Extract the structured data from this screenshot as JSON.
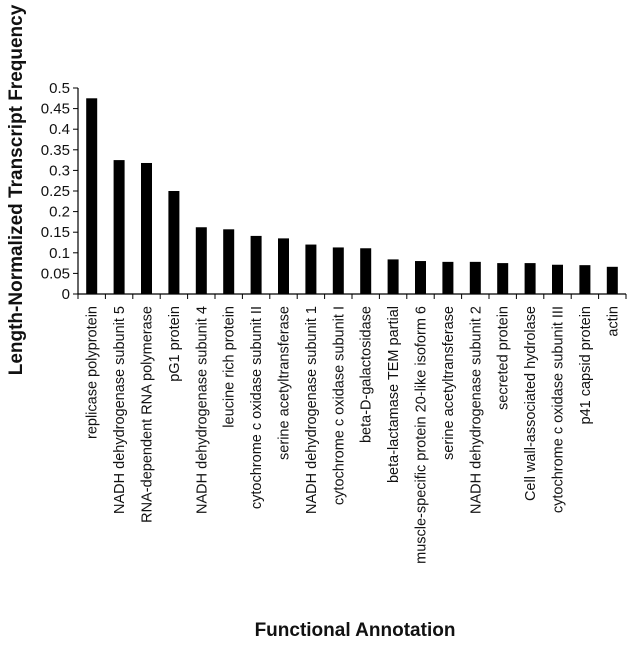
{
  "chart_data": {
    "type": "bar",
    "title": "",
    "xlabel": "Functional Annotation",
    "ylabel": "Length-Normalized Transcript Frequency",
    "ylim": [
      0,
      0.5
    ],
    "yticks": [
      0,
      0.05,
      0.1,
      0.15,
      0.2,
      0.25,
      0.3,
      0.35,
      0.4,
      0.45,
      0.5
    ],
    "ytick_labels": [
      "0",
      "0.05",
      "0.1",
      "0.15",
      "0.2",
      "0.25",
      "0.3",
      "0.35",
      "0.4",
      "0.45",
      "0.5"
    ],
    "grid": false,
    "legend": "none",
    "bar_color": "#000000",
    "categories": [
      "replicase polyprotein",
      "NADH dehydrogenase subunit 5",
      "RNA-dependent RNA polymerase",
      "pG1 protein",
      "NADH dehydrogenase subunit 4",
      "leucine rich protein",
      "cytochrome c oxidase subunit II",
      "serine acetyltransferase",
      "NADH dehydrogenase subunit 1",
      "cytochrome c oxidase subunit I",
      "beta-D-galactosidase",
      "beta-lactamase TEM  partial",
      "muscle-specific protein 20-like isoform 6",
      "serine acetyltransferase",
      "NADH dehydrogenase subunit 2",
      "secreted protein",
      "Cell wall-associated hydrolase",
      "cytochrome c oxidase subunit III",
      "p41 capsid protein",
      "actin"
    ],
    "values": [
      0.475,
      0.325,
      0.318,
      0.25,
      0.162,
      0.157,
      0.141,
      0.135,
      0.12,
      0.113,
      0.111,
      0.084,
      0.08,
      0.078,
      0.078,
      0.075,
      0.075,
      0.071,
      0.07,
      0.066
    ]
  }
}
